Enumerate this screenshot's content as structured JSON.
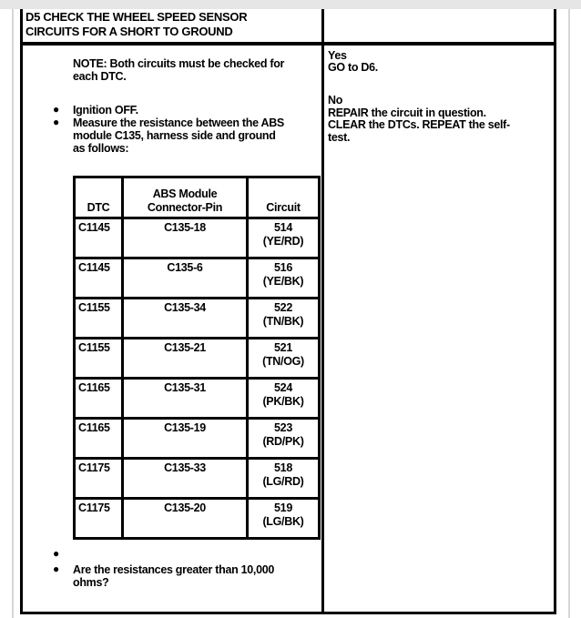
{
  "step": {
    "title_line1": "D5 CHECK THE WHEEL SPEED SENSOR",
    "title_line2": "CIRCUITS FOR A SHORT TO GROUND"
  },
  "left": {
    "note_line1": "NOTE: Both circuits must be checked for",
    "note_line2": "each DTC.",
    "bullet1": "Ignition OFF.",
    "bullet2_line1": "Measure the resistance between the ABS",
    "bullet2_line2": "module C135, harness side and ground",
    "bullet2_line3": "as follows:",
    "bullet3": "",
    "question_line1": "Are the resistances greater than 10,000",
    "question_line2": "ohms?"
  },
  "table": {
    "headers": {
      "dtc": "DTC",
      "pin_line1": "ABS Module",
      "pin_line2": "Connector-Pin",
      "circuit": "Circuit"
    },
    "rows": [
      {
        "dtc": "C1145",
        "pin": "C135-18",
        "circuit": "514",
        "color": "(YE/RD)"
      },
      {
        "dtc": "C1145",
        "pin": "C135-6",
        "circuit": "516",
        "color": "(YE/BK)"
      },
      {
        "dtc": "C1155",
        "pin": "C135-34",
        "circuit": "522",
        "color": "(TN/BK)"
      },
      {
        "dtc": "C1155",
        "pin": "C135-21",
        "circuit": "521",
        "color": "(TN/OG)"
      },
      {
        "dtc": "C1165",
        "pin": "C135-31",
        "circuit": "524",
        "color": "(PK/BK)"
      },
      {
        "dtc": "C1165",
        "pin": "C135-19",
        "circuit": "523",
        "color": "(RD/PK)"
      },
      {
        "dtc": "C1175",
        "pin": "C135-33",
        "circuit": "518",
        "color": "(LG/RD)"
      },
      {
        "dtc": "C1175",
        "pin": "C135-20",
        "circuit": "519",
        "color": "(LG/BK)"
      }
    ]
  },
  "right": {
    "yes_label": "Yes",
    "yes_action": "GO to D6.",
    "no_label": "No",
    "no_action_line1": "REPAIR the circuit in question.",
    "no_action_line2": "CLEAR the DTCs. REPEAT the self-",
    "no_action_line3": "test."
  }
}
